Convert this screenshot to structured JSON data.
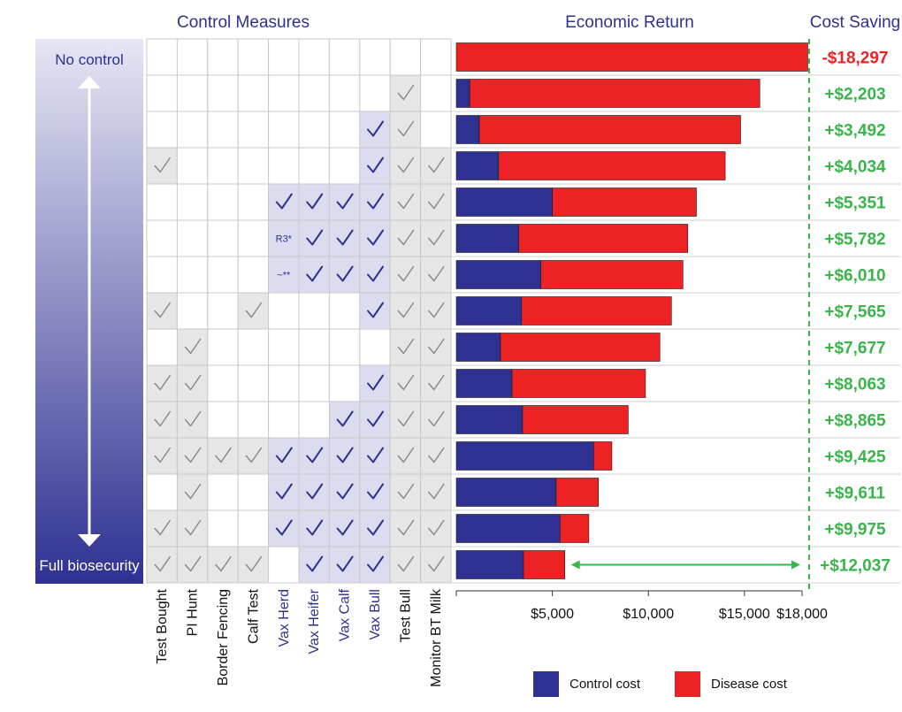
{
  "headers": {
    "control_measures": "Control Measures",
    "economic_return": "Economic Return",
    "cost_saving": "Cost Saving"
  },
  "scale": {
    "top_label": "No control",
    "bottom_label": "Full biosecurity"
  },
  "measures": [
    {
      "label": "Test Bought",
      "kind": "test"
    },
    {
      "label": "PI Hunt",
      "kind": "test"
    },
    {
      "label": "Border Fencing",
      "kind": "test"
    },
    {
      "label": "Calf Test",
      "kind": "test"
    },
    {
      "label": "Vax Herd",
      "kind": "vax"
    },
    {
      "label": "Vax Heifer",
      "kind": "vax"
    },
    {
      "label": "Vax Calf",
      "kind": "vax"
    },
    {
      "label": "Vax Bull",
      "kind": "vax"
    },
    {
      "label": "Test Bull",
      "kind": "test"
    },
    {
      "label": "Monitor BT Milk",
      "kind": "test"
    }
  ],
  "rows": [
    {
      "cells": [
        "",
        "",
        "",
        "",
        "",
        "",
        "",
        "",
        "",
        ""
      ]
    },
    {
      "cells": [
        "",
        "",
        "",
        "",
        "",
        "",
        "",
        "",
        "check",
        ""
      ]
    },
    {
      "cells": [
        "",
        "",
        "",
        "",
        "",
        "",
        "",
        "check",
        "check",
        ""
      ]
    },
    {
      "cells": [
        "check",
        "",
        "",
        "",
        "",
        "",
        "",
        "check",
        "check",
        "check"
      ]
    },
    {
      "cells": [
        "",
        "",
        "",
        "",
        "check",
        "check",
        "check",
        "check",
        "check",
        "check"
      ]
    },
    {
      "cells": [
        "",
        "",
        "",
        "",
        "R3*",
        "check",
        "check",
        "check",
        "check",
        "check"
      ]
    },
    {
      "cells": [
        "",
        "",
        "",
        "",
        "~**",
        "check",
        "check",
        "check",
        "check",
        "check"
      ]
    },
    {
      "cells": [
        "check",
        "",
        "",
        "check",
        "",
        "",
        "",
        "check",
        "check",
        "check"
      ]
    },
    {
      "cells": [
        "",
        "check",
        "",
        "",
        "",
        "",
        "",
        "",
        "check",
        "check"
      ]
    },
    {
      "cells": [
        "check",
        "check",
        "",
        "",
        "",
        "",
        "",
        "check",
        "check",
        "check"
      ]
    },
    {
      "cells": [
        "check",
        "check",
        "",
        "",
        "",
        "",
        "check",
        "check",
        "check",
        "check"
      ]
    },
    {
      "cells": [
        "check",
        "check",
        "check",
        "check",
        "check",
        "check",
        "check",
        "check",
        "check",
        "check"
      ]
    },
    {
      "cells": [
        "",
        "check",
        "",
        "",
        "check",
        "check",
        "check",
        "check",
        "check",
        "check"
      ]
    },
    {
      "cells": [
        "check",
        "check",
        "",
        "",
        "check",
        "check",
        "check",
        "check",
        "check",
        "check"
      ]
    },
    {
      "cells": [
        "check",
        "check",
        "check",
        "check",
        "",
        "check",
        "check",
        "check",
        "check",
        "check"
      ]
    }
  ],
  "chart_data": {
    "type": "bar",
    "orientation": "horizontal",
    "stacked": true,
    "xlim": [
      0,
      18000
    ],
    "x_ticks": [
      {
        "value": 5000,
        "label": "$5,000"
      },
      {
        "value": 10000,
        "label": "$10,000"
      },
      {
        "value": 15000,
        "label": "$15,000"
      },
      {
        "value": 18000,
        "label": "$18,000"
      }
    ],
    "reference_line": 18000,
    "series": [
      {
        "name": "Control cost",
        "color": "#2e3192",
        "values": [
          0,
          700,
          1200,
          2200,
          5000,
          3250,
          4400,
          3400,
          2300,
          2900,
          3450,
          7150,
          5200,
          5400,
          3500
        ]
      },
      {
        "name": "Disease cost",
        "color": "#ed2224",
        "values": [
          18297,
          15100,
          13600,
          11800,
          7500,
          8800,
          7400,
          7800,
          8300,
          6950,
          5500,
          950,
          2200,
          1500,
          2150
        ]
      }
    ],
    "cost_saving_labels": [
      "-$18,297",
      "+$2,203",
      "+$3,492",
      "+$4,034",
      "+$5,351",
      "+$5,782",
      "+$6,010",
      "+$7,565",
      "+$7,677",
      "+$8,063",
      "+$8,865",
      "+$9,425",
      "+$9,611",
      "+$9,975",
      "+$12,037"
    ],
    "cost_saving_colors": [
      "#ed2224",
      "#39b54a",
      "#39b54a",
      "#39b54a",
      "#39b54a",
      "#39b54a",
      "#39b54a",
      "#39b54a",
      "#39b54a",
      "#39b54a",
      "#39b54a",
      "#39b54a",
      "#39b54a",
      "#39b54a",
      "#39b54a"
    ],
    "annotation": {
      "row": 14,
      "type": "double-arrow",
      "from": 5600,
      "to": 18000,
      "color": "#39b54a"
    }
  },
  "legend": [
    {
      "label": "Control cost",
      "color": "#2e3192"
    },
    {
      "label": "Disease cost",
      "color": "#ed2224"
    }
  ],
  "colors": {
    "navy": "#2e3192",
    "red": "#ed2224",
    "green": "#39b54a",
    "grey_cell": "#e6e6e6",
    "vax_cell": "#dcdcef"
  }
}
